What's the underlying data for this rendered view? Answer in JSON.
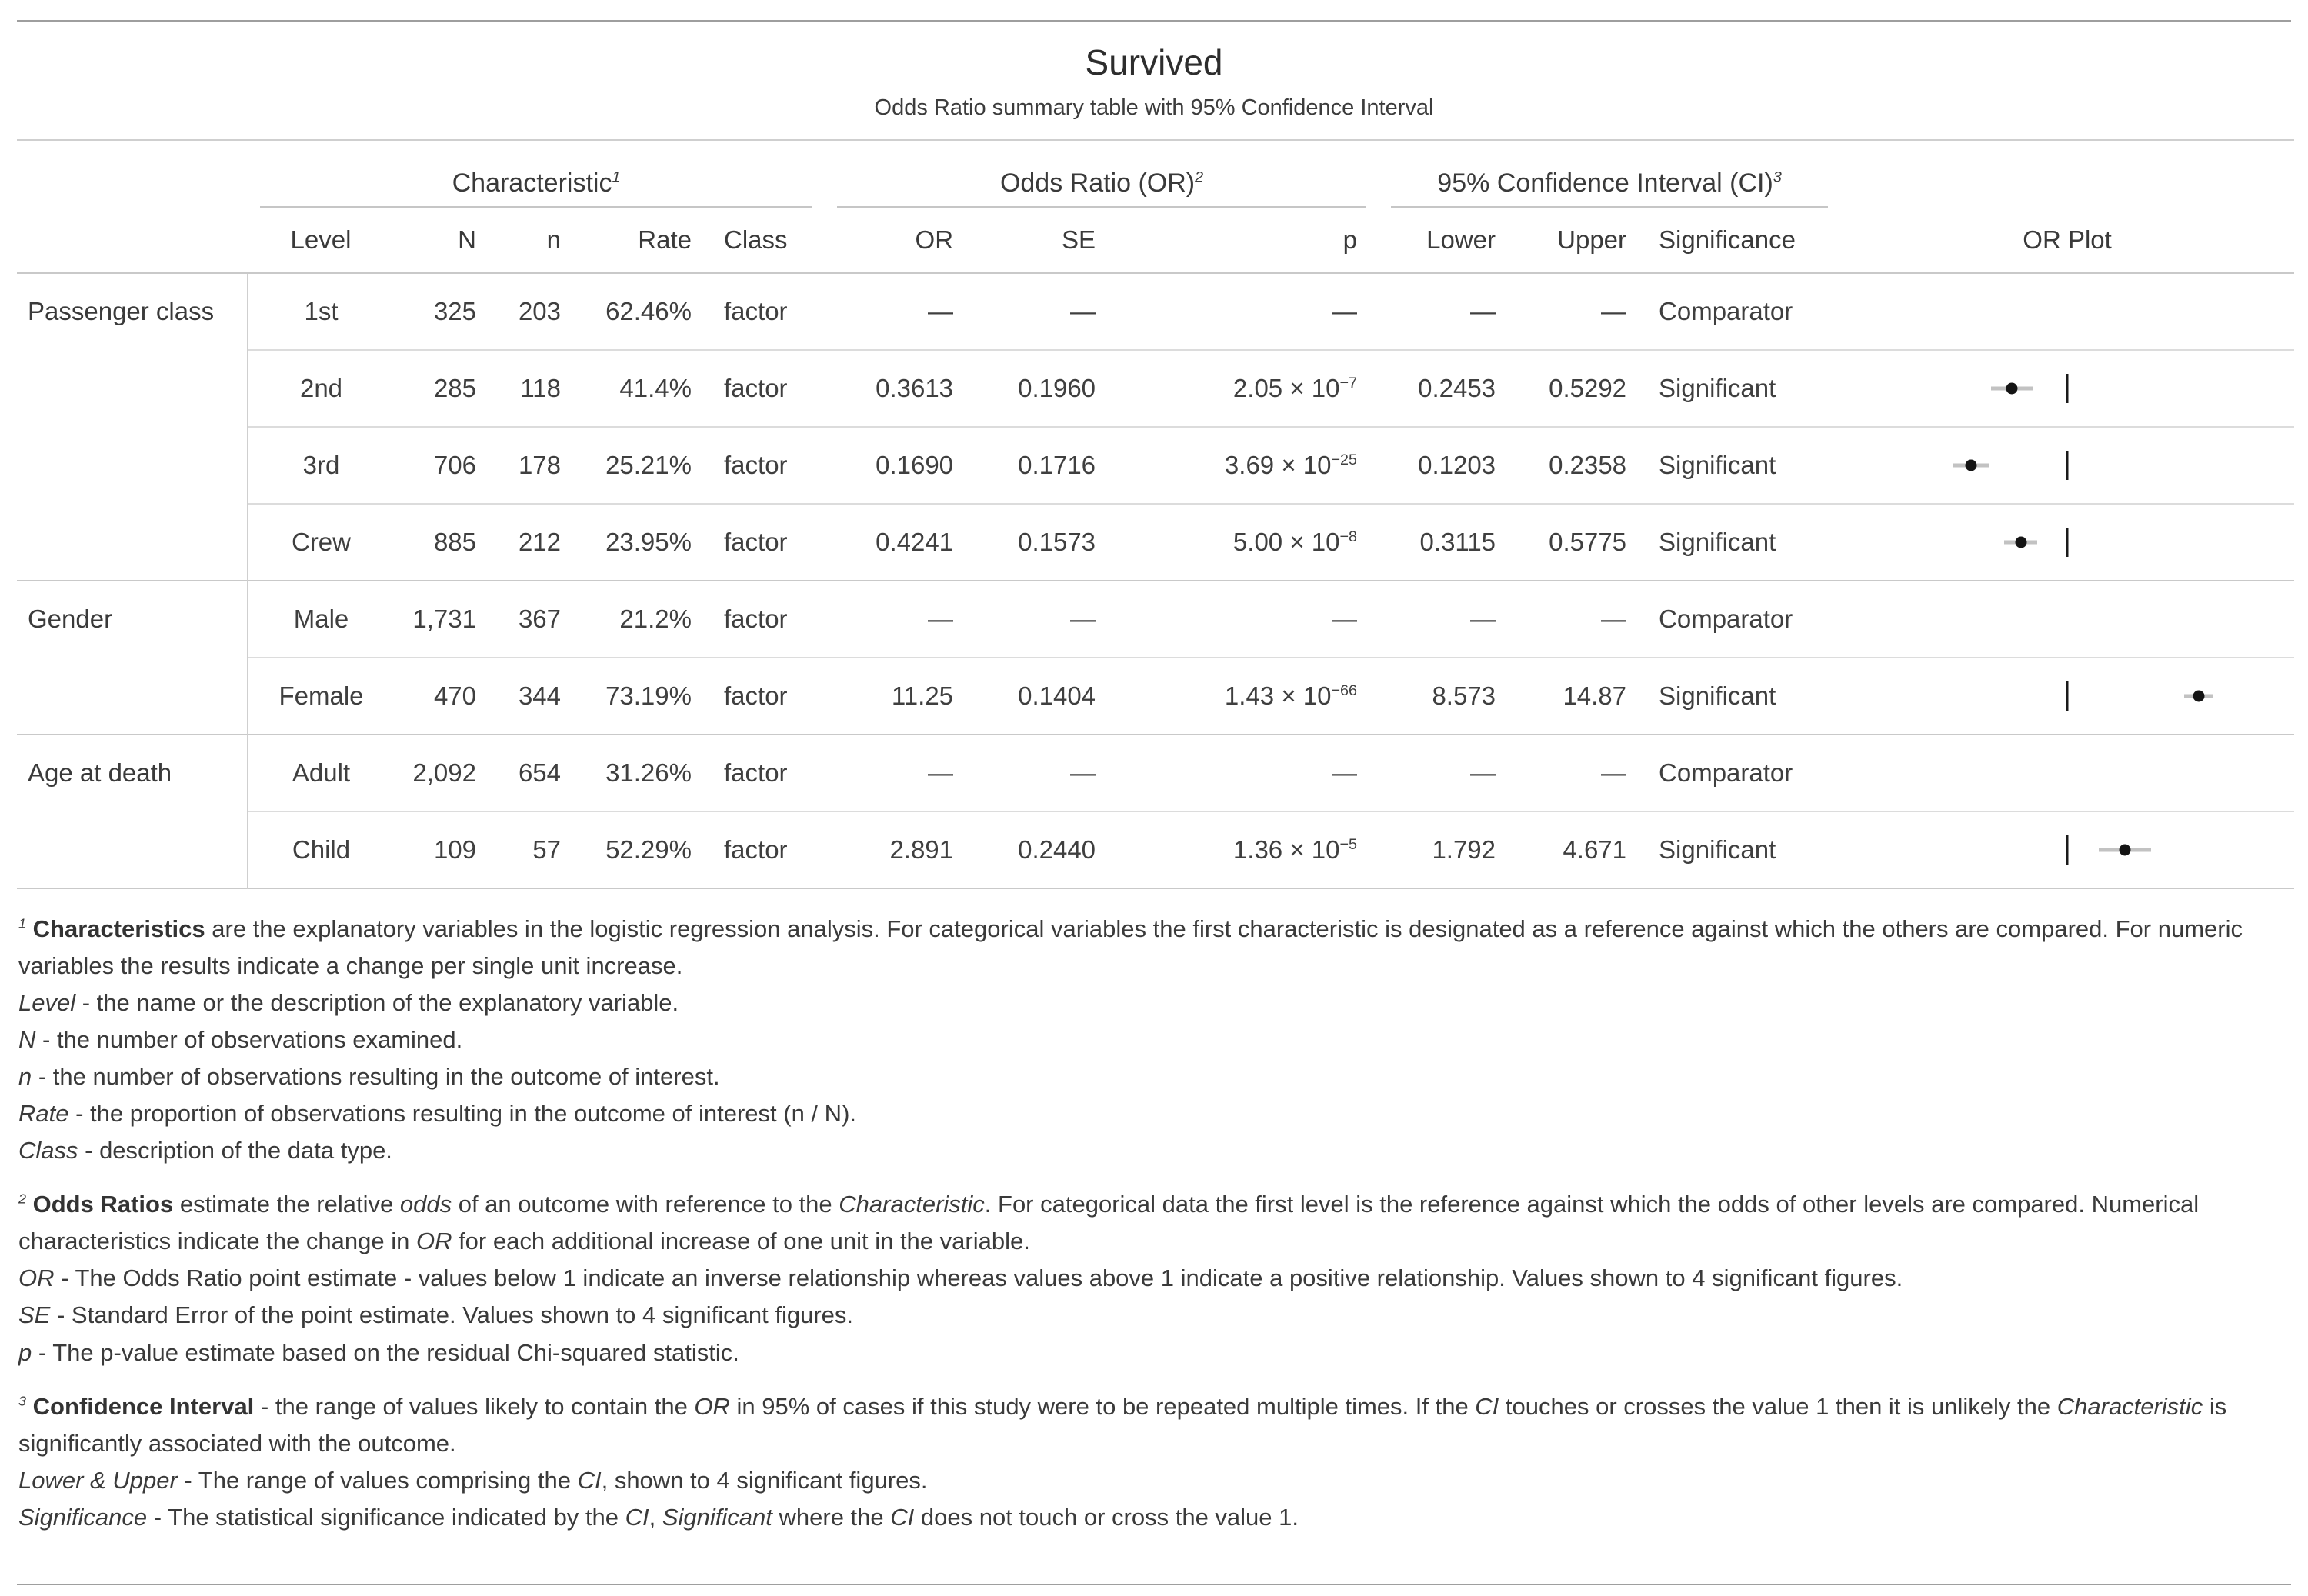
{
  "title": "Survived",
  "subtitle": "Odds Ratio summary table with 95% Confidence Interval",
  "header_groups": [
    {
      "label": "Characteristic",
      "marker": "1"
    },
    {
      "label": "Odds Ratio (OR)",
      "marker": "2"
    },
    {
      "label": "95% Confidence Interval (CI)",
      "marker": "3"
    }
  ],
  "columns": [
    "Level",
    "N",
    "n",
    "Rate",
    "Class",
    "OR",
    "SE",
    "p",
    "Lower",
    "Upper",
    "Significance",
    "OR Plot"
  ],
  "groups": [
    {
      "name": "Passenger class",
      "rows": [
        {
          "level": "1st",
          "N": "325",
          "n": "203",
          "rate": "62.46%",
          "cls": "factor",
          "or": "—",
          "se": "—",
          "p": "—",
          "lower": "—",
          "upper": "—",
          "sig": "Comparator"
        },
        {
          "level": "2nd",
          "N": "285",
          "n": "118",
          "rate": "41.4%",
          "cls": "factor",
          "or": "0.3613",
          "se": "0.1960",
          "p": "2.05 × 10",
          "p_exp": "−7",
          "lower": "0.2453",
          "upper": "0.5292",
          "sig": "Significant",
          "plot": {
            "or": 0.3613,
            "lower": 0.2453,
            "upper": 0.5292
          }
        },
        {
          "level": "3rd",
          "N": "706",
          "n": "178",
          "rate": "25.21%",
          "cls": "factor",
          "or": "0.1690",
          "se": "0.1716",
          "p": "3.69 × 10",
          "p_exp": "−25",
          "lower": "0.1203",
          "upper": "0.2358",
          "sig": "Significant",
          "plot": {
            "or": 0.169,
            "lower": 0.1203,
            "upper": 0.2358
          }
        },
        {
          "level": "Crew",
          "N": "885",
          "n": "212",
          "rate": "23.95%",
          "cls": "factor",
          "or": "0.4241",
          "se": "0.1573",
          "p": "5.00 × 10",
          "p_exp": "−8",
          "lower": "0.3115",
          "upper": "0.5775",
          "sig": "Significant",
          "plot": {
            "or": 0.4241,
            "lower": 0.3115,
            "upper": 0.5775
          }
        }
      ]
    },
    {
      "name": "Gender",
      "rows": [
        {
          "level": "Male",
          "N": "1,731",
          "n": "367",
          "rate": "21.2%",
          "cls": "factor",
          "or": "—",
          "se": "—",
          "p": "—",
          "lower": "—",
          "upper": "—",
          "sig": "Comparator"
        },
        {
          "level": "Female",
          "N": "470",
          "n": "344",
          "rate": "73.19%",
          "cls": "factor",
          "or": "11.25",
          "se": "0.1404",
          "p": "1.43 × 10",
          "p_exp": "−66",
          "lower": "8.573",
          "upper": "14.87",
          "sig": "Significant",
          "plot": {
            "or": 11.25,
            "lower": 8.573,
            "upper": 14.87
          }
        }
      ]
    },
    {
      "name": "Age at death",
      "rows": [
        {
          "level": "Adult",
          "N": "2,092",
          "n": "654",
          "rate": "31.26%",
          "cls": "factor",
          "or": "—",
          "se": "—",
          "p": "—",
          "lower": "—",
          "upper": "—",
          "sig": "Comparator"
        },
        {
          "level": "Child",
          "N": "109",
          "n": "57",
          "rate": "52.29%",
          "cls": "factor",
          "or": "2.891",
          "se": "0.2440",
          "p": "1.36 × 10",
          "p_exp": "−5",
          "lower": "1.792",
          "upper": "4.671",
          "sig": "Significant",
          "plot": {
            "or": 2.891,
            "lower": 1.792,
            "upper": 4.671
          }
        }
      ]
    }
  ],
  "footnotes": [
    {
      "marker": "1",
      "lines": [
        [
          {
            "t": "Characteristics",
            "s": "b"
          },
          {
            "t": " are the explanatory variables in the logistic regression analysis. For categorical variables the first characteristic is designated as a reference against which the others are compared. For numeric variables the results indicate a change per single unit increase."
          }
        ],
        [
          {
            "t": "Level",
            "s": "i"
          },
          {
            "t": " - the name or the description of the explanatory variable."
          }
        ],
        [
          {
            "t": "N",
            "s": "i"
          },
          {
            "t": " - the number of observations examined."
          }
        ],
        [
          {
            "t": "n",
            "s": "i"
          },
          {
            "t": " - the number of observations resulting in the outcome of interest."
          }
        ],
        [
          {
            "t": "Rate",
            "s": "i"
          },
          {
            "t": " - the proportion of observations resulting in the outcome of interest (n / N)."
          }
        ],
        [
          {
            "t": "Class",
            "s": "i"
          },
          {
            "t": " - description of the data type."
          }
        ]
      ]
    },
    {
      "marker": "2",
      "lines": [
        [
          {
            "t": "Odds Ratios",
            "s": "b"
          },
          {
            "t": " estimate the relative "
          },
          {
            "t": "odds",
            "s": "i"
          },
          {
            "t": " of an outcome with reference to the "
          },
          {
            "t": "Characteristic",
            "s": "i"
          },
          {
            "t": ". For categorical data the first level is the reference against which the odds of other levels are compared. Numerical characteristics indicate the change in "
          },
          {
            "t": "OR",
            "s": "i"
          },
          {
            "t": " for each additional increase of one unit in the variable."
          }
        ],
        [
          {
            "t": "OR",
            "s": "i"
          },
          {
            "t": " - The Odds Ratio point estimate - values below 1 indicate an inverse relationship whereas values above 1 indicate a positive relationship. Values shown to 4 significant figures."
          }
        ],
        [
          {
            "t": "SE",
            "s": "i"
          },
          {
            "t": " - Standard Error of the point estimate. Values shown to 4 significant figures."
          }
        ],
        [
          {
            "t": "p",
            "s": "i"
          },
          {
            "t": " - The p-value estimate based on the residual Chi-squared statistic."
          }
        ]
      ]
    },
    {
      "marker": "3",
      "lines": [
        [
          {
            "t": "Confidence Interval",
            "s": "b"
          },
          {
            "t": " - the range of values likely to contain the "
          },
          {
            "t": "OR",
            "s": "i"
          },
          {
            "t": " in 95% of cases if this study were to be repeated multiple times. If the "
          },
          {
            "t": "CI",
            "s": "i"
          },
          {
            "t": " touches or crosses the value 1 then it is unlikely the "
          },
          {
            "t": "Characteristic",
            "s": "i"
          },
          {
            "t": " is significantly associated with the outcome."
          }
        ],
        [
          {
            "t": "Lower & Upper",
            "s": "i"
          },
          {
            "t": " - The range of values comprising the "
          },
          {
            "t": "CI",
            "s": "i"
          },
          {
            "t": ", shown to 4 significant figures."
          }
        ],
        [
          {
            "t": "Significance",
            "s": "i"
          },
          {
            "t": " - The statistical significance indicated by the "
          },
          {
            "t": "CI",
            "s": "i"
          },
          {
            "t": ", "
          },
          {
            "t": "Significant",
            "s": "i"
          },
          {
            "t": " where the "
          },
          {
            "t": "CI",
            "s": "i"
          },
          {
            "t": " does not touch or cross the value 1."
          }
        ]
      ]
    }
  ],
  "colors": {
    "text": "#3a3a3a",
    "rule_dark": "#9e9e9e",
    "rule_light": "#cfcfcf",
    "ci_line": "#c2c2c2",
    "or_dot": "#141414"
  },
  "chart_data": {
    "type": "table",
    "title": "Survived",
    "subtitle": "Odds Ratio summary table with 95% Confidence Interval",
    "columns": [
      "Group",
      "Level",
      "N",
      "n",
      "Rate",
      "Class",
      "OR",
      "SE",
      "p",
      "Lower",
      "Upper",
      "Significance"
    ],
    "rows": [
      [
        "Passenger class",
        "1st",
        325,
        203,
        "62.46%",
        "factor",
        null,
        null,
        null,
        null,
        null,
        "Comparator"
      ],
      [
        "Passenger class",
        "2nd",
        285,
        118,
        "41.4%",
        "factor",
        0.3613,
        0.196,
        "2.05e-7",
        0.2453,
        0.5292,
        "Significant"
      ],
      [
        "Passenger class",
        "3rd",
        706,
        178,
        "25.21%",
        "factor",
        0.169,
        0.1716,
        "3.69e-25",
        0.1203,
        0.2358,
        "Significant"
      ],
      [
        "Passenger class",
        "Crew",
        885,
        212,
        "23.95%",
        "factor",
        0.4241,
        0.1573,
        "5.00e-8",
        0.3115,
        0.5775,
        "Significant"
      ],
      [
        "Gender",
        "Male",
        1731,
        367,
        "21.2%",
        "factor",
        null,
        null,
        null,
        null,
        null,
        "Comparator"
      ],
      [
        "Gender",
        "Female",
        470,
        344,
        "73.19%",
        "factor",
        11.25,
        0.1404,
        "1.43e-66",
        8.573,
        14.87,
        "Significant"
      ],
      [
        "Age at death",
        "Adult",
        2092,
        654,
        "31.26%",
        "factor",
        null,
        null,
        null,
        null,
        null,
        "Comparator"
      ],
      [
        "Age at death",
        "Child",
        109,
        57,
        "52.29%",
        "factor",
        2.891,
        0.244,
        "1.36e-5",
        1.792,
        4.671,
        "Significant"
      ]
    ],
    "or_plot": {
      "type": "forest",
      "scale": "log",
      "reference_line": 1
    }
  }
}
